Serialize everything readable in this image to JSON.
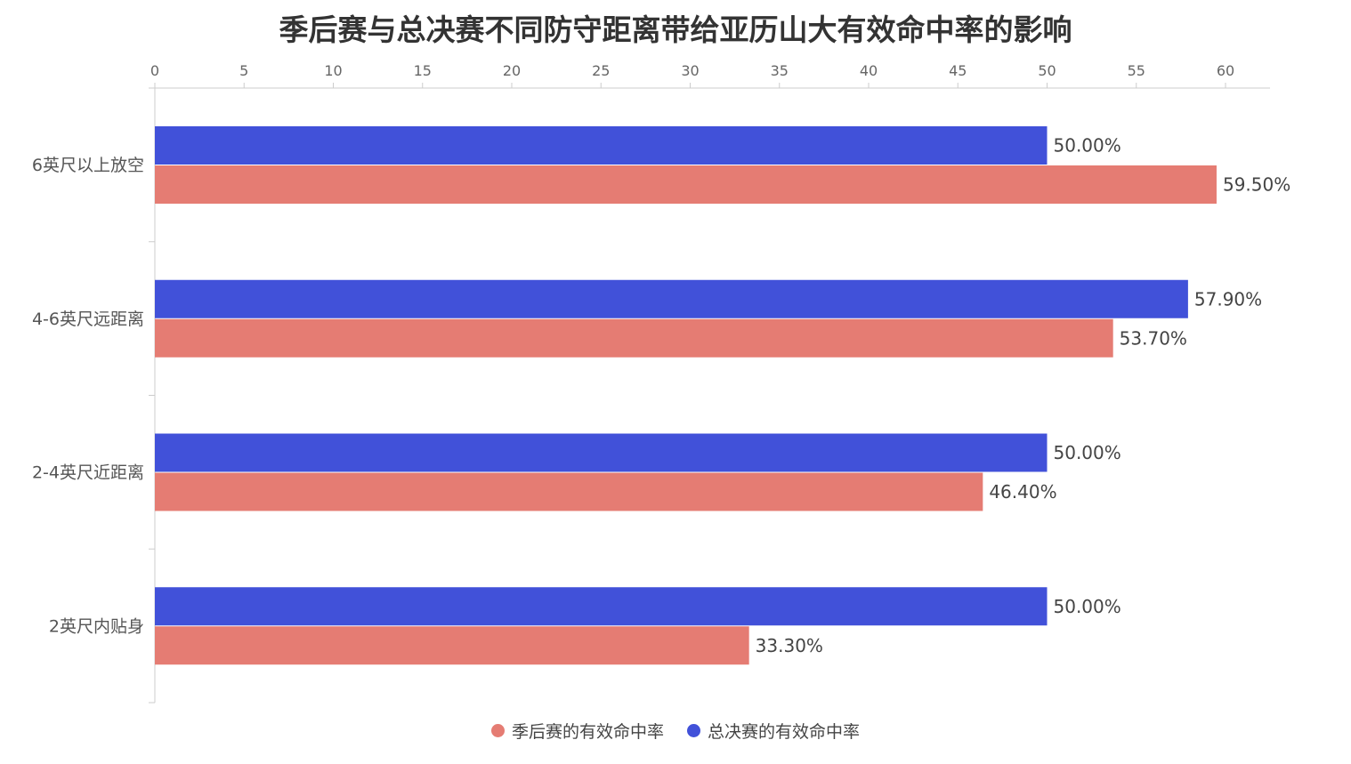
{
  "title": "季后赛与总决赛不同防守距离带给亚历山大有效命中率的影响",
  "colors": {
    "playoffs": "#e57c73",
    "finals": "#4151d9",
    "axis": "#cccccc",
    "text": "#333333"
  },
  "legend": {
    "position": "bottom-center",
    "items": [
      {
        "label": "季后赛的有效命中率",
        "color": "#e57c73"
      },
      {
        "label": "总决赛的有效命中率",
        "color": "#4151d9"
      }
    ]
  },
  "chart_data": {
    "type": "bar",
    "orientation": "horizontal",
    "title": "季后赛与总决赛不同防守距离带给亚历山大有效命中率的影响",
    "categories": [
      "6英尺以上放空",
      "4-6英尺远距离",
      "2-4英尺近距离",
      "2英尺内贴身"
    ],
    "series": [
      {
        "name": "总决赛的有效命中率",
        "values": [
          50.0,
          57.9,
          50.0,
          50.0
        ],
        "labels": [
          "50.00%",
          "57.90%",
          "50.00%",
          "50.00%"
        ],
        "color": "#4151d9"
      },
      {
        "name": "季后赛的有效命中率",
        "values": [
          59.5,
          53.7,
          46.4,
          33.3
        ],
        "labels": [
          "59.50%",
          "53.70%",
          "46.40%",
          "33.30%"
        ],
        "color": "#e57c73"
      }
    ],
    "xlim": [
      0,
      62.5
    ],
    "x_ticks": [
      0,
      5,
      10,
      15,
      20,
      25,
      30,
      35,
      40,
      45,
      50,
      55,
      60
    ],
    "x_axis_position": "top",
    "grid": false,
    "legend_position": "bottom"
  }
}
